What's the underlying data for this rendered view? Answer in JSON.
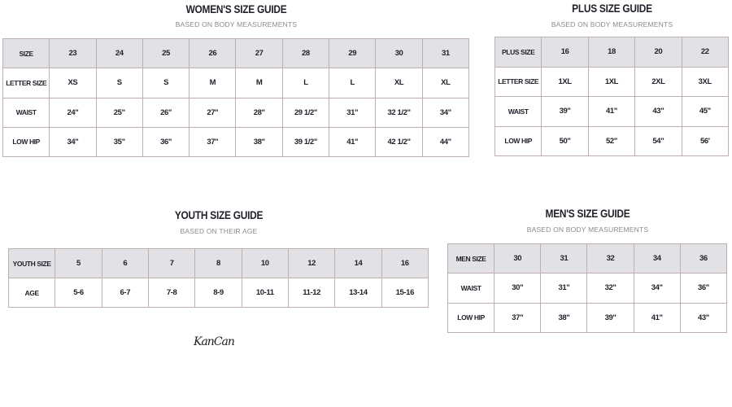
{
  "women": {
    "title": "WOMEN'S SIZE GUIDE",
    "subtitle": "BASED ON BODY MEASUREMENTS",
    "rows": [
      [
        "SIZE",
        "23",
        "24",
        "25",
        "26",
        "27",
        "28",
        "29",
        "30",
        "31"
      ],
      [
        "LETTER SIZE",
        "XS",
        "S",
        "S",
        "M",
        "M",
        "L",
        "L",
        "XL",
        "XL"
      ],
      [
        "WAIST",
        "24\"",
        "25\"",
        "26\"",
        "27\"",
        "28\"",
        "29 1/2\"",
        "31\"",
        "32 1/2\"",
        "34\""
      ],
      [
        "LOW HIP",
        "34\"",
        "35\"",
        "36\"",
        "37\"",
        "38\"",
        "39 1/2\"",
        "41\"",
        "42 1/2\"",
        "44\""
      ]
    ]
  },
  "plus": {
    "title": "PLUS SIZE GUIDE",
    "subtitle": "BASED ON BODY MEASUREMENTS",
    "rows": [
      [
        "PLUS SIZE",
        "16",
        "18",
        "20",
        "22"
      ],
      [
        "LETTER SIZE",
        "1XL",
        "1XL",
        "2XL",
        "3XL"
      ],
      [
        "WAIST",
        "39\"",
        "41\"",
        "43\"",
        "45\""
      ],
      [
        "LOW HIP",
        "50\"",
        "52\"",
        "54\"",
        "56'"
      ]
    ]
  },
  "youth": {
    "title": "YOUTH SIZE GUIDE",
    "subtitle": "BASED ON THEIR AGE",
    "rows": [
      [
        "YOUTH SIZE",
        "5",
        "6",
        "7",
        "8",
        "10",
        "12",
        "14",
        "16"
      ],
      [
        "AGE",
        "5-6",
        "6-7",
        "7-8",
        "8-9",
        "10-11",
        "11-12",
        "13-14",
        "15-16"
      ]
    ]
  },
  "men": {
    "title": "MEN'S SIZE GUIDE",
    "subtitle": "BASED ON BODY MEASUREMENTS",
    "rows": [
      [
        "MEN SIZE",
        "30",
        "31",
        "32",
        "34",
        "36"
      ],
      [
        "WAIST",
        "30\"",
        "31\"",
        "32\"",
        "34\"",
        "36\""
      ],
      [
        "LOW HIP",
        "37\"",
        "38\"",
        "39\"",
        "41\"",
        "43\""
      ]
    ]
  },
  "signature": "KanCan",
  "colors": {
    "header_bg": "#e2e1e6",
    "border": "#bdb0ae",
    "subtitle": "#8b8b8b"
  }
}
